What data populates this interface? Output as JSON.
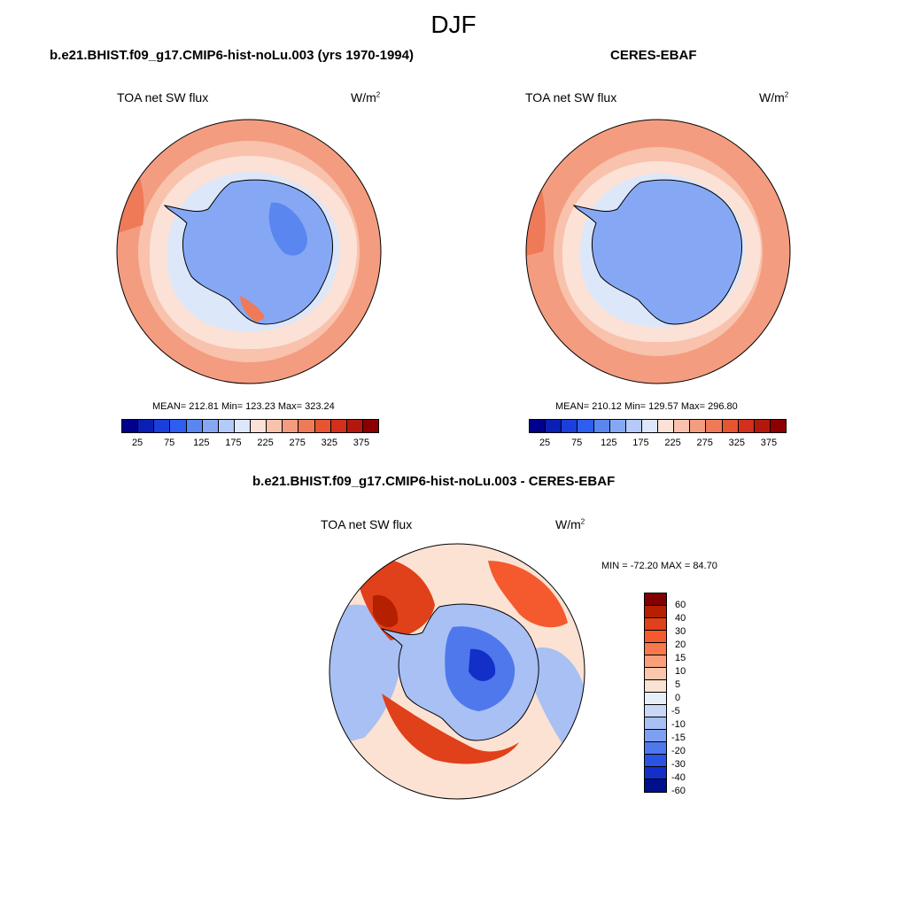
{
  "title": "DJF",
  "panels": [
    {
      "title": "b.e21.BHIST.f09_g17.CMIP6-hist-noLu.003 (yrs 1970-1994)",
      "variable": "TOA net SW flux",
      "units": "W/m",
      "units_sup": "2",
      "stats": "MEAN= 212.81  Min= 123.23  Max= 323.24"
    },
    {
      "title": "CERES-EBAF",
      "variable": "TOA net SW flux",
      "units": "W/m",
      "units_sup": "2",
      "stats": "MEAN= 210.12  Min= 129.57  Max= 296.80"
    },
    {
      "title": "b.e21.BHIST.f09_g17.CMIP6-hist-noLu.003 - CERES-EBAF",
      "variable": "TOA net SW flux",
      "units": "W/m",
      "units_sup": "2",
      "stats": "MIN = -72.20 MAX =  84.70"
    }
  ],
  "colorbar_abs": {
    "colors": [
      "#00008c",
      "#0a1fb4",
      "#1a3fdc",
      "#2e5ef0",
      "#5a86f0",
      "#86a8f4",
      "#b4caf8",
      "#dce8fa",
      "#fbe1d6",
      "#f8c2ac",
      "#f49c80",
      "#ee7a58",
      "#e65432",
      "#d2301a",
      "#b4180c",
      "#8c0000"
    ],
    "ticks": [
      "25",
      "75",
      "125",
      "175",
      "225",
      "275",
      "325",
      "375"
    ]
  },
  "colorbar_diff": {
    "colors": [
      "#800000",
      "#b42000",
      "#e0401a",
      "#f45a2e",
      "#f8784c",
      "#f8a07c",
      "#fac6ac",
      "#fce2d2",
      "#e8eef8",
      "#c8d8f6",
      "#a8c0f4",
      "#7ea0f0",
      "#4e78ec",
      "#2a52e4",
      "#1230c8",
      "#00108c"
    ],
    "ticks": [
      "60",
      "40",
      "30",
      "20",
      "15",
      "10",
      "5",
      "0",
      "-5",
      "-10",
      "-15",
      "-20",
      "-30",
      "-40",
      "-60"
    ]
  }
}
